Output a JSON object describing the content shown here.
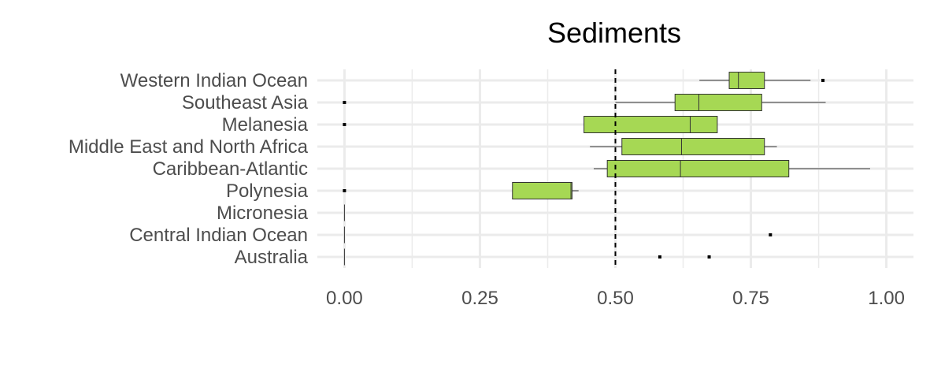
{
  "chart_data": {
    "type": "boxplot",
    "title": "Sediments",
    "xlabel": "",
    "ylabel": "",
    "xlim": [
      -0.05,
      1.05
    ],
    "x_ticks": [
      0,
      0.25,
      0.5,
      0.75,
      1
    ],
    "x_tick_labels": [
      "0.00",
      "0.25",
      "0.50",
      "0.75",
      "1.00"
    ],
    "reference_line": {
      "x": 0.5,
      "style": "dashed",
      "color": "#000000"
    },
    "box_color": "#a6d854",
    "grid": true,
    "categories": [
      {
        "label": "Western Indian Ocean",
        "min": 0.655,
        "q1": 0.71,
        "median": 0.727,
        "q3": 0.775,
        "max": 0.86,
        "outliers": [
          0.883
        ]
      },
      {
        "label": "Southeast Asia",
        "min": 0.5,
        "q1": 0.61,
        "median": 0.654,
        "q3": 0.77,
        "max": 0.888,
        "outliers": [
          0
        ]
      },
      {
        "label": "Melanesia",
        "min": 0.442,
        "q1": 0.442,
        "median": 0.638,
        "q3": 0.688,
        "max": 0.688,
        "outliers": [
          0
        ]
      },
      {
        "label": "Middle East and North Africa",
        "min": 0.453,
        "q1": 0.512,
        "median": 0.622,
        "q3": 0.775,
        "max": 0.798,
        "outliers": []
      },
      {
        "label": "Caribbean-Atlantic",
        "min": 0.46,
        "q1": 0.485,
        "median": 0.62,
        "q3": 0.82,
        "max": 0.97,
        "outliers": []
      },
      {
        "label": "Polynesia",
        "min": 0.31,
        "q1": 0.31,
        "median": 0.418,
        "q3": 0.42,
        "max": 0.432,
        "outliers": [
          0
        ]
      },
      {
        "label": "Micronesia",
        "min": 0,
        "q1": 0,
        "median": 0,
        "q3": 0,
        "max": 0,
        "outliers": []
      },
      {
        "label": "Central Indian Ocean",
        "min": 0,
        "q1": 0,
        "median": 0,
        "q3": 0,
        "max": 0,
        "outliers": [
          0.786
        ]
      },
      {
        "label": "Australia",
        "min": 0,
        "q1": 0,
        "median": 0,
        "q3": 0,
        "max": 0,
        "outliers": [
          0.582,
          0.673
        ]
      }
    ]
  }
}
